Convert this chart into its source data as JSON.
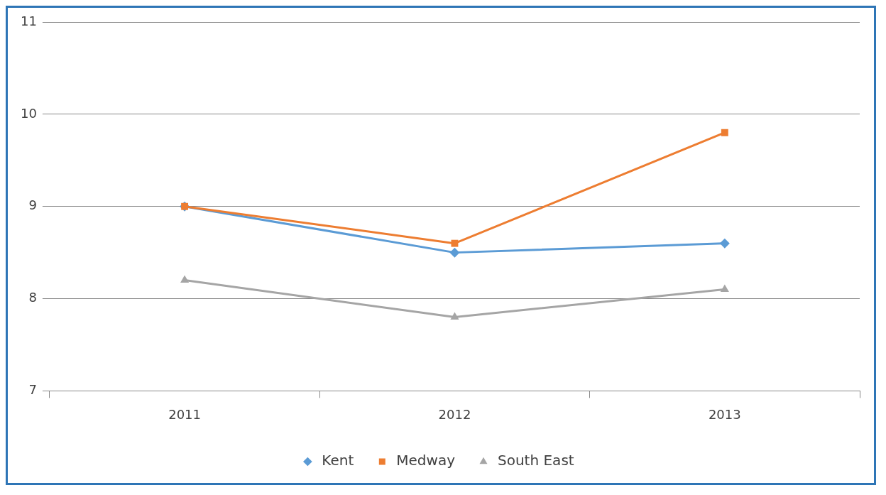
{
  "chart_data": {
    "type": "line",
    "categories": [
      "2011",
      "2012",
      "2013"
    ],
    "series": [
      {
        "name": "Kent",
        "color": "#5b9bd5",
        "values": [
          9.0,
          8.5,
          8.6
        ],
        "marker": "diamond"
      },
      {
        "name": "Medway",
        "color": "#ed7d31",
        "values": [
          9.0,
          8.6,
          9.8
        ],
        "marker": "square"
      },
      {
        "name": "South East",
        "color": "#a5a5a5",
        "values": [
          8.2,
          7.8,
          8.1
        ],
        "marker": "triangle"
      }
    ],
    "ylim": [
      7,
      11
    ],
    "yticks": [
      7,
      8,
      9,
      10,
      11
    ],
    "grid": "y",
    "legend": "bottom",
    "line_style": "solid"
  }
}
